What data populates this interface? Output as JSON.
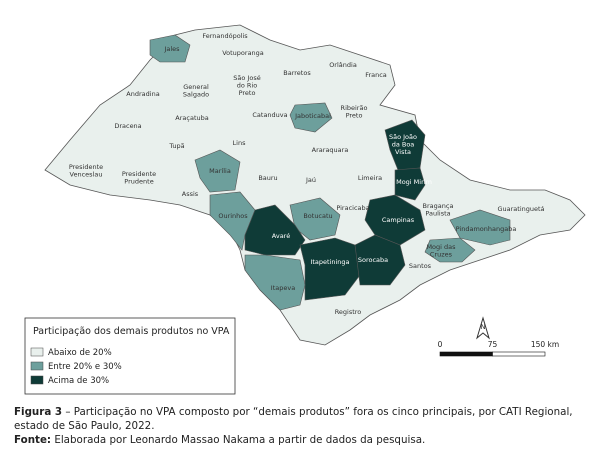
{
  "map": {
    "classes": [
      {
        "name": "Abaixo de 20%",
        "color": "#e9f0ed"
      },
      {
        "name": "Entre 20% e 30%",
        "color": "#6d9f9c"
      },
      {
        "name": "Acima de 30%",
        "color": "#0f3b37"
      }
    ],
    "legend_title": "Participação dos demais produtos no VPA",
    "regions": [
      {
        "lines": [
          "Jales"
        ],
        "class": 1
      },
      {
        "lines": [
          "Fernandópolis"
        ],
        "class": 0
      },
      {
        "lines": [
          "Votuporanga"
        ],
        "class": 0
      },
      {
        "lines": [
          "General",
          "Salgado"
        ],
        "class": 0
      },
      {
        "lines": [
          "São José",
          "do Rio",
          "Preto"
        ],
        "class": 0
      },
      {
        "lines": [
          "Barretos"
        ],
        "class": 0
      },
      {
        "lines": [
          "Orlândia"
        ],
        "class": 0
      },
      {
        "lines": [
          "Franca"
        ],
        "class": 0
      },
      {
        "lines": [
          "Andradina"
        ],
        "class": 0
      },
      {
        "lines": [
          "Araçatuba"
        ],
        "class": 0
      },
      {
        "lines": [
          "Catanduva"
        ],
        "class": 0
      },
      {
        "lines": [
          "Jaboticabal"
        ],
        "class": 1
      },
      {
        "lines": [
          "Ribeirão",
          "Preto"
        ],
        "class": 0
      },
      {
        "lines": [
          "São João",
          "da Boa",
          "Vista"
        ],
        "class": 2
      },
      {
        "lines": [
          "Dracena"
        ],
        "class": 0
      },
      {
        "lines": [
          "Lins"
        ],
        "class": 0
      },
      {
        "lines": [
          "Araraquara"
        ],
        "class": 0
      },
      {
        "lines": [
          "Presidente",
          "Venceslau"
        ],
        "class": 0
      },
      {
        "lines": [
          "Tupã"
        ],
        "class": 0
      },
      {
        "lines": [
          "Presidente",
          "Prudente"
        ],
        "class": 0
      },
      {
        "lines": [
          "Marília"
        ],
        "class": 1
      },
      {
        "lines": [
          "Bauru"
        ],
        "class": 0
      },
      {
        "lines": [
          "Jaú"
        ],
        "class": 0
      },
      {
        "lines": [
          "Limeira"
        ],
        "class": 0
      },
      {
        "lines": [
          "Mogi Mirim"
        ],
        "class": 2
      },
      {
        "lines": [
          "Assis"
        ],
        "class": 0
      },
      {
        "lines": [
          "Piracicaba"
        ],
        "class": 0
      },
      {
        "lines": [
          "Bragança",
          "Paulista"
        ],
        "class": 0
      },
      {
        "lines": [
          "Guaratinguetá"
        ],
        "class": 0
      },
      {
        "lines": [
          "Ourinhos"
        ],
        "class": 1
      },
      {
        "lines": [
          "Botucatu"
        ],
        "class": 1
      },
      {
        "lines": [
          "Campinas"
        ],
        "class": 2
      },
      {
        "lines": [
          "Pindamonhangaba"
        ],
        "class": 1
      },
      {
        "lines": [
          "Avaré"
        ],
        "class": 2
      },
      {
        "lines": [
          "Mogi das",
          "Cruzes"
        ],
        "class": 1
      },
      {
        "lines": [
          "Itapetininga"
        ],
        "class": 2
      },
      {
        "lines": [
          "Sorocaba"
        ],
        "class": 2
      },
      {
        "lines": [
          "Santos"
        ],
        "class": 0
      },
      {
        "lines": [
          "Itapeva"
        ],
        "class": 1
      },
      {
        "lines": [
          "Registro"
        ],
        "class": 0
      }
    ],
    "scale": [
      {
        "value": 0,
        "label": "0"
      },
      75,
      {
        "value": 150,
        "label": "150 km"
      }
    ]
  },
  "caption": {
    "label": "Figura 3",
    "text": " – Participação no VPA composto por “demais produtos” fora os cinco principais, por CATI Regional, estado de São Paulo, 2022."
  },
  "source": {
    "label": "Fonte:",
    "text": " Elaborada por Leonardo Massao Nakama a partir de dados da pesquisa."
  }
}
